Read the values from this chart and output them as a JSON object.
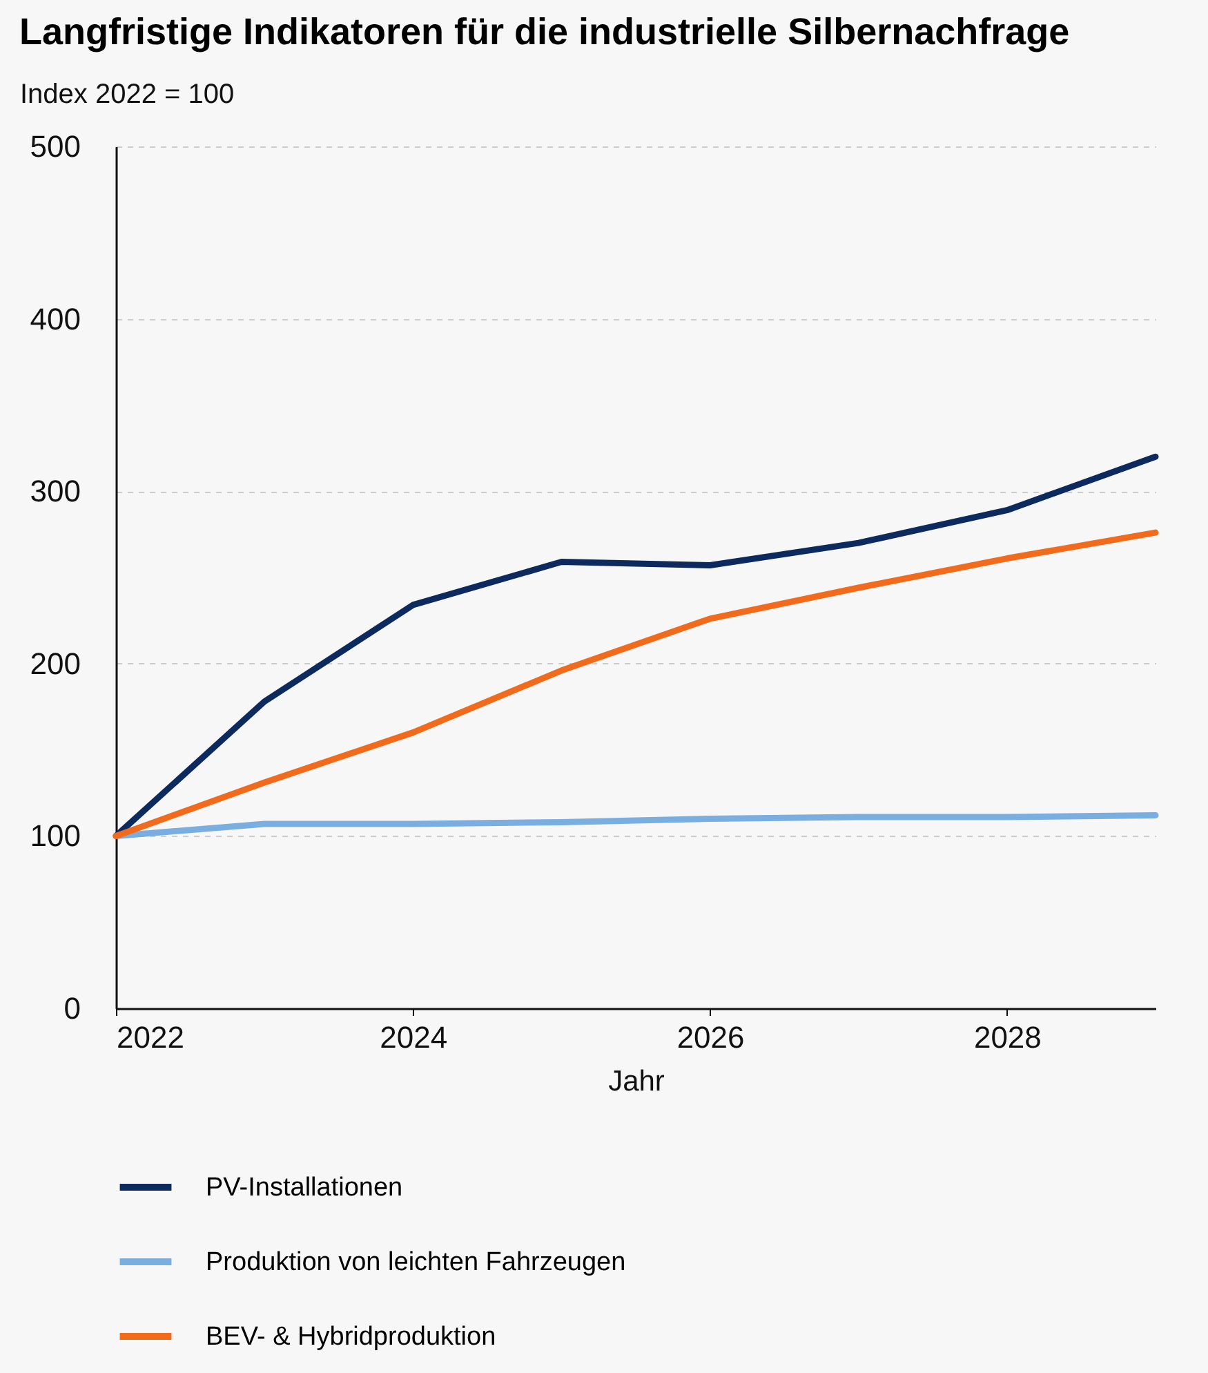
{
  "chart_data": {
    "type": "line",
    "title": "Langfristige Indikatoren für die industrielle Silbernachfrage",
    "xlabel": "Jahr",
    "ylabel": "Index 2022 = 100",
    "x": [
      2022,
      2023,
      2024,
      2025,
      2026,
      2027,
      2028,
      2029
    ],
    "series": [
      {
        "name": "PV-Installationen",
        "color": "#0d2a5e",
        "values": [
          100,
          178,
          234,
          259,
          257,
          270,
          289,
          320
        ]
      },
      {
        "name": "Produktion von leichten Fahrzeugen",
        "color": "#7aaee0",
        "values": [
          100,
          107,
          107,
          108,
          110,
          111,
          111,
          112
        ]
      },
      {
        "name": "BEV- & Hybridproduktion",
        "color": "#f26b1d",
        "values": [
          100,
          131,
          160,
          196,
          226,
          244,
          261,
          276
        ]
      }
    ],
    "xlim": [
      2022,
      2029
    ],
    "xticks": [
      2022,
      2024,
      2026,
      2028
    ],
    "ylim": [
      0,
      500
    ],
    "yticks": [
      0,
      100,
      200,
      300,
      400,
      500
    ],
    "grid": "y",
    "legend": "bottom"
  }
}
